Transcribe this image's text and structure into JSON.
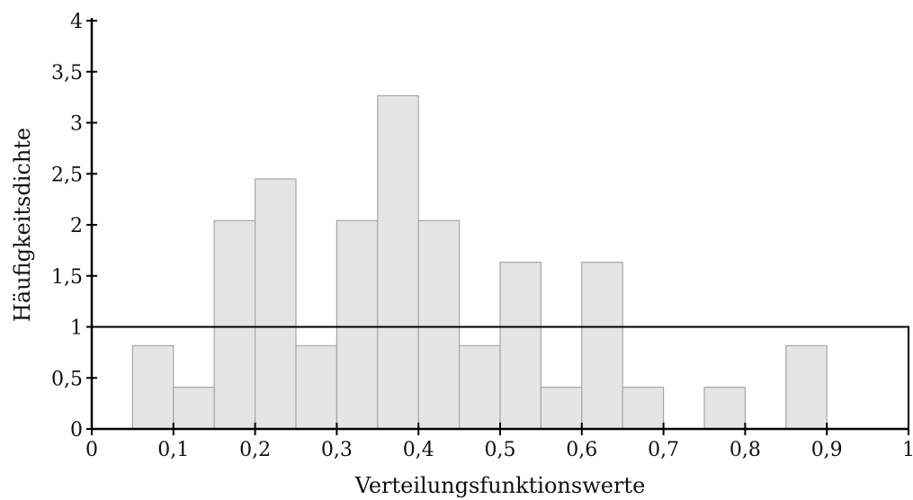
{
  "chart_data": {
    "type": "bar",
    "subtype": "histogram",
    "xlabel": "Verteilungsfunktionswerte",
    "ylabel": "Häufigkeitsdichte",
    "xlim": [
      0,
      1
    ],
    "ylim": [
      0,
      4
    ],
    "x_ticks": [
      "0",
      "0,1",
      "0,2",
      "0,3",
      "0,4",
      "0,5",
      "0,6",
      "0,7",
      "0,8",
      "0,9",
      "1"
    ],
    "y_ticks": [
      "0",
      "0,5",
      "1",
      "1,5",
      "2",
      "2,5",
      "3",
      "3,5",
      "4"
    ],
    "bins": [
      {
        "x0": 0.05,
        "x1": 0.1,
        "value": 0.816
      },
      {
        "x0": 0.1,
        "x1": 0.15,
        "value": 0.408
      },
      {
        "x0": 0.15,
        "x1": 0.2,
        "value": 2.041
      },
      {
        "x0": 0.2,
        "x1": 0.25,
        "value": 2.449
      },
      {
        "x0": 0.25,
        "x1": 0.3,
        "value": 0.816
      },
      {
        "x0": 0.3,
        "x1": 0.35,
        "value": 2.041
      },
      {
        "x0": 0.35,
        "x1": 0.4,
        "value": 3.265
      },
      {
        "x0": 0.4,
        "x1": 0.45,
        "value": 2.041
      },
      {
        "x0": 0.45,
        "x1": 0.5,
        "value": 0.816
      },
      {
        "x0": 0.5,
        "x1": 0.55,
        "value": 1.633
      },
      {
        "x0": 0.55,
        "x1": 0.6,
        "value": 0.408
      },
      {
        "x0": 0.6,
        "x1": 0.65,
        "value": 1.633
      },
      {
        "x0": 0.65,
        "x1": 0.7,
        "value": 0.408
      },
      {
        "x0": 0.7,
        "x1": 0.75,
        "value": 0
      },
      {
        "x0": 0.75,
        "x1": 0.8,
        "value": 0.408
      },
      {
        "x0": 0.8,
        "x1": 0.85,
        "value": 0
      },
      {
        "x0": 0.85,
        "x1": 0.9,
        "value": 0.816
      },
      {
        "x0": 0.9,
        "x1": 0.95,
        "value": 0
      },
      {
        "x0": 0.95,
        "x1": 1.0,
        "value": 0
      }
    ],
    "reference_density": {
      "x0": 0,
      "x1": 1,
      "value": 1
    },
    "grid": false,
    "colors": {
      "bar_fill": "#e5e5e5",
      "bar_stroke": "#a6a6a6",
      "axis": "#000000",
      "reference": "#000000"
    }
  }
}
